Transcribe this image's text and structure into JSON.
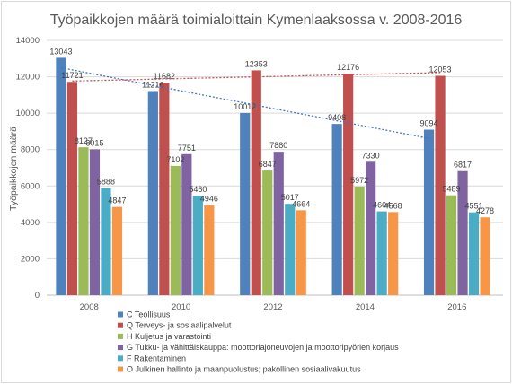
{
  "chart_data": {
    "type": "bar",
    "title": "Työpaikkojen määrä toimialoittain Kymenlaaksossa v. 2008-2016",
    "ylabel": "Työpaikkojen määrä",
    "xlabel": "",
    "ylim": [
      0,
      14000
    ],
    "yticks": [
      0,
      2000,
      4000,
      6000,
      8000,
      10000,
      12000,
      14000
    ],
    "grid": true,
    "legend_position": "bottom",
    "categories": [
      "2008",
      "2010",
      "2012",
      "2014",
      "2016"
    ],
    "series": [
      {
        "name": "C Teollisuus",
        "color": "#4f81bd",
        "values": [
          13043,
          11216,
          10012,
          9408,
          9094
        ]
      },
      {
        "name": "Q Terveys- ja sosiaalipalvelut",
        "color": "#c0504d",
        "values": [
          11721,
          11682,
          12353,
          12176,
          12053
        ]
      },
      {
        "name": "H Kuljetus ja varastointi",
        "color": "#9bbb59",
        "values": [
          8127,
          7102,
          6847,
          5972,
          5489
        ]
      },
      {
        "name": "G Tukku- ja vähittäiskauppa: moottoriajoneuvojen ja moottoripyörien korjaus",
        "color": "#8064a2",
        "values": [
          8015,
          7751,
          7880,
          7330,
          6817
        ]
      },
      {
        "name": "F Rakentaminen",
        "color": "#4bacc6",
        "values": [
          5888,
          5460,
          5017,
          4604,
          4551
        ]
      },
      {
        "name": "O Julkinen hallinto ja maanpuolustus; pakollinen sosiaalivakuutus",
        "color": "#f79646",
        "values": [
          4847,
          4946,
          4664,
          4568,
          4278
        ]
      }
    ],
    "trendlines": [
      {
        "series_index": 0,
        "color": "#4472c4",
        "style": "dotted"
      },
      {
        "series_index": 1,
        "color": "#c0504d",
        "style": "dotted"
      }
    ]
  }
}
